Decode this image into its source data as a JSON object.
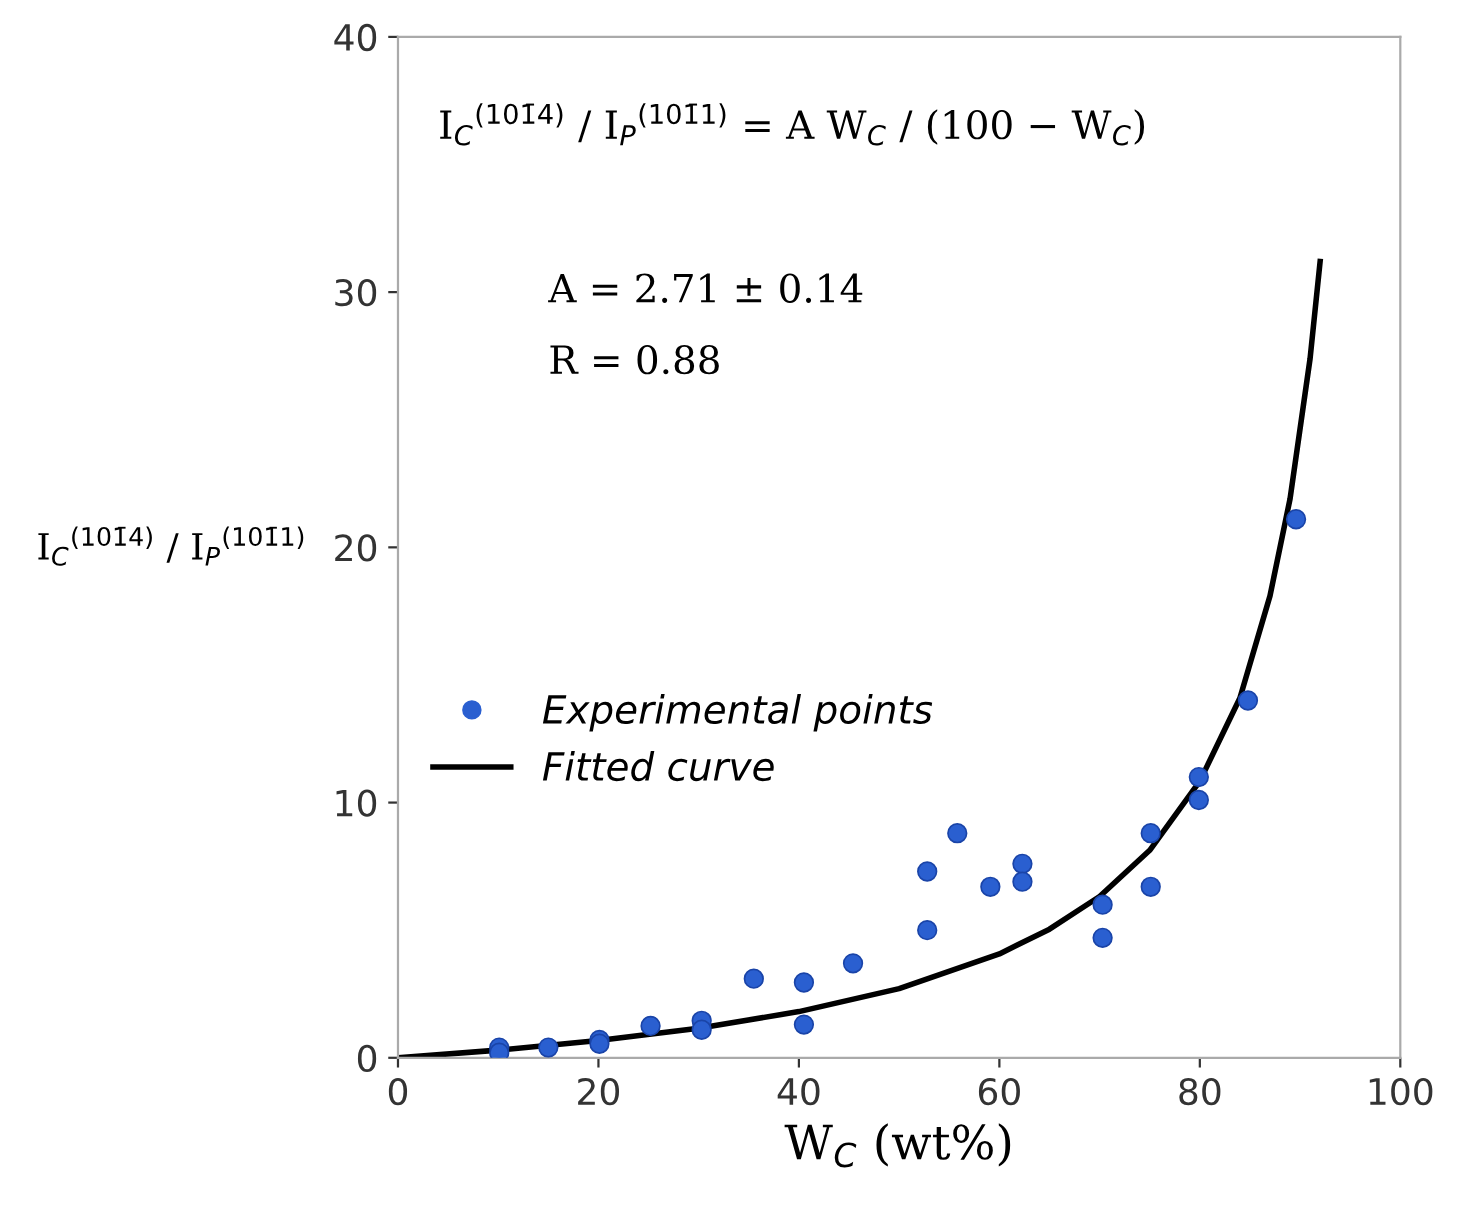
{
  "chart_data": {
    "type": "scatter",
    "xlabel": "W$_{C}$ (wt%)",
    "ylabel": "I$_{C}$$^{(101̄4)}$ / I$_{P}$$^{(101̄1)}$",
    "annotations": [
      "I$_{C}$$^{(101̄4)}$ / I$_{P}$$^{(101̄1)}$ = A W$_{C}$ / (100 − W$_{C}$)",
      "A = 2.71 ± 0.14",
      "R = 0.88"
    ],
    "series": [
      {
        "name": "Experimental points",
        "color": "#2a5fd0",
        "marker": "circle",
        "x": [
          10.1,
          10.1,
          15.0,
          20.1,
          20.1,
          25.2,
          30.3,
          30.3,
          35.5,
          40.5,
          40.5,
          45.4,
          52.8,
          52.8,
          55.8,
          59.1,
          62.3,
          62.3,
          70.3,
          70.3,
          75.1,
          75.1,
          79.9,
          79.9,
          84.8,
          89.6
        ],
        "values": [
          0.4,
          0.2,
          0.4,
          0.7,
          0.55,
          1.25,
          1.45,
          1.1,
          3.1,
          2.95,
          1.3,
          3.7,
          7.3,
          5.0,
          8.8,
          6.7,
          7.6,
          6.9,
          6.0,
          4.7,
          8.8,
          6.7,
          11.0,
          10.1,
          14.0,
          21.1
        ]
      },
      {
        "name": "Fitted curve",
        "type": "line",
        "color": "#000000",
        "line_style": "solid",
        "x": [
          0,
          10,
          20,
          30,
          40,
          50,
          60,
          65,
          70,
          75,
          80,
          84,
          87,
          89,
          91,
          92
        ],
        "values": [
          0,
          0.3,
          0.68,
          1.16,
          1.81,
          2.71,
          4.07,
          5.04,
          6.32,
          8.13,
          10.84,
          14.1,
          18.1,
          21.9,
          27.4,
          31.2
        ]
      }
    ],
    "xlim": [
      0,
      100
    ],
    "xticks": [
      0,
      20,
      40,
      60,
      80,
      100
    ],
    "ylim": [
      0,
      40
    ],
    "yticks": [
      0,
      10,
      20,
      30,
      40
    ],
    "grid": false,
    "legend": "left"
  }
}
